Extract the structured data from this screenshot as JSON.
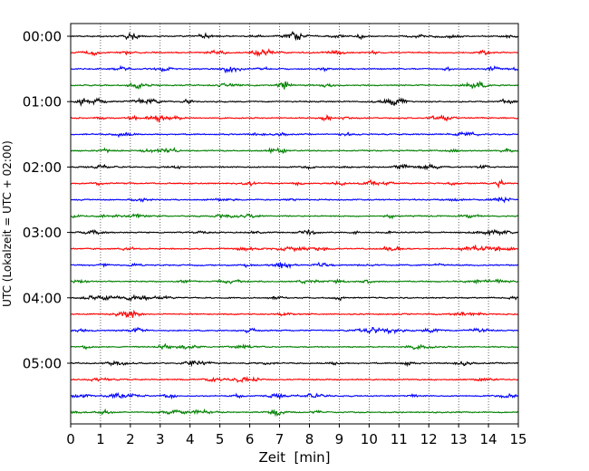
{
  "chart_data": {
    "type": "line",
    "plot_kind": "helicorder",
    "xlabel": "Zeit  [min]",
    "ylabel": "UTC (Lokalzeit = UTC + 02:00)",
    "xlim": [
      0,
      15
    ],
    "x_ticks": [
      0,
      1,
      2,
      3,
      4,
      5,
      6,
      7,
      8,
      9,
      10,
      11,
      12,
      13,
      14,
      15
    ],
    "x_tick_labels": [
      "0",
      "1",
      "2",
      "3",
      "4",
      "5",
      "6",
      "7",
      "8",
      "9",
      "10",
      "11",
      "12",
      "13",
      "14",
      "15"
    ],
    "x_grid": "dotted vertical at each minute",
    "y_tick_labels": [
      "00:00",
      "01:00",
      "02:00",
      "03:00",
      "04:00",
      "05:00"
    ],
    "trace_interval_min": 15,
    "trace_count": 24,
    "trace_colors": [
      "#000000",
      "#ff0000",
      "#0000ff",
      "#008000"
    ],
    "trace_amplitude": "small continuous noise, ±3 to ±5 amplitude units"
  }
}
